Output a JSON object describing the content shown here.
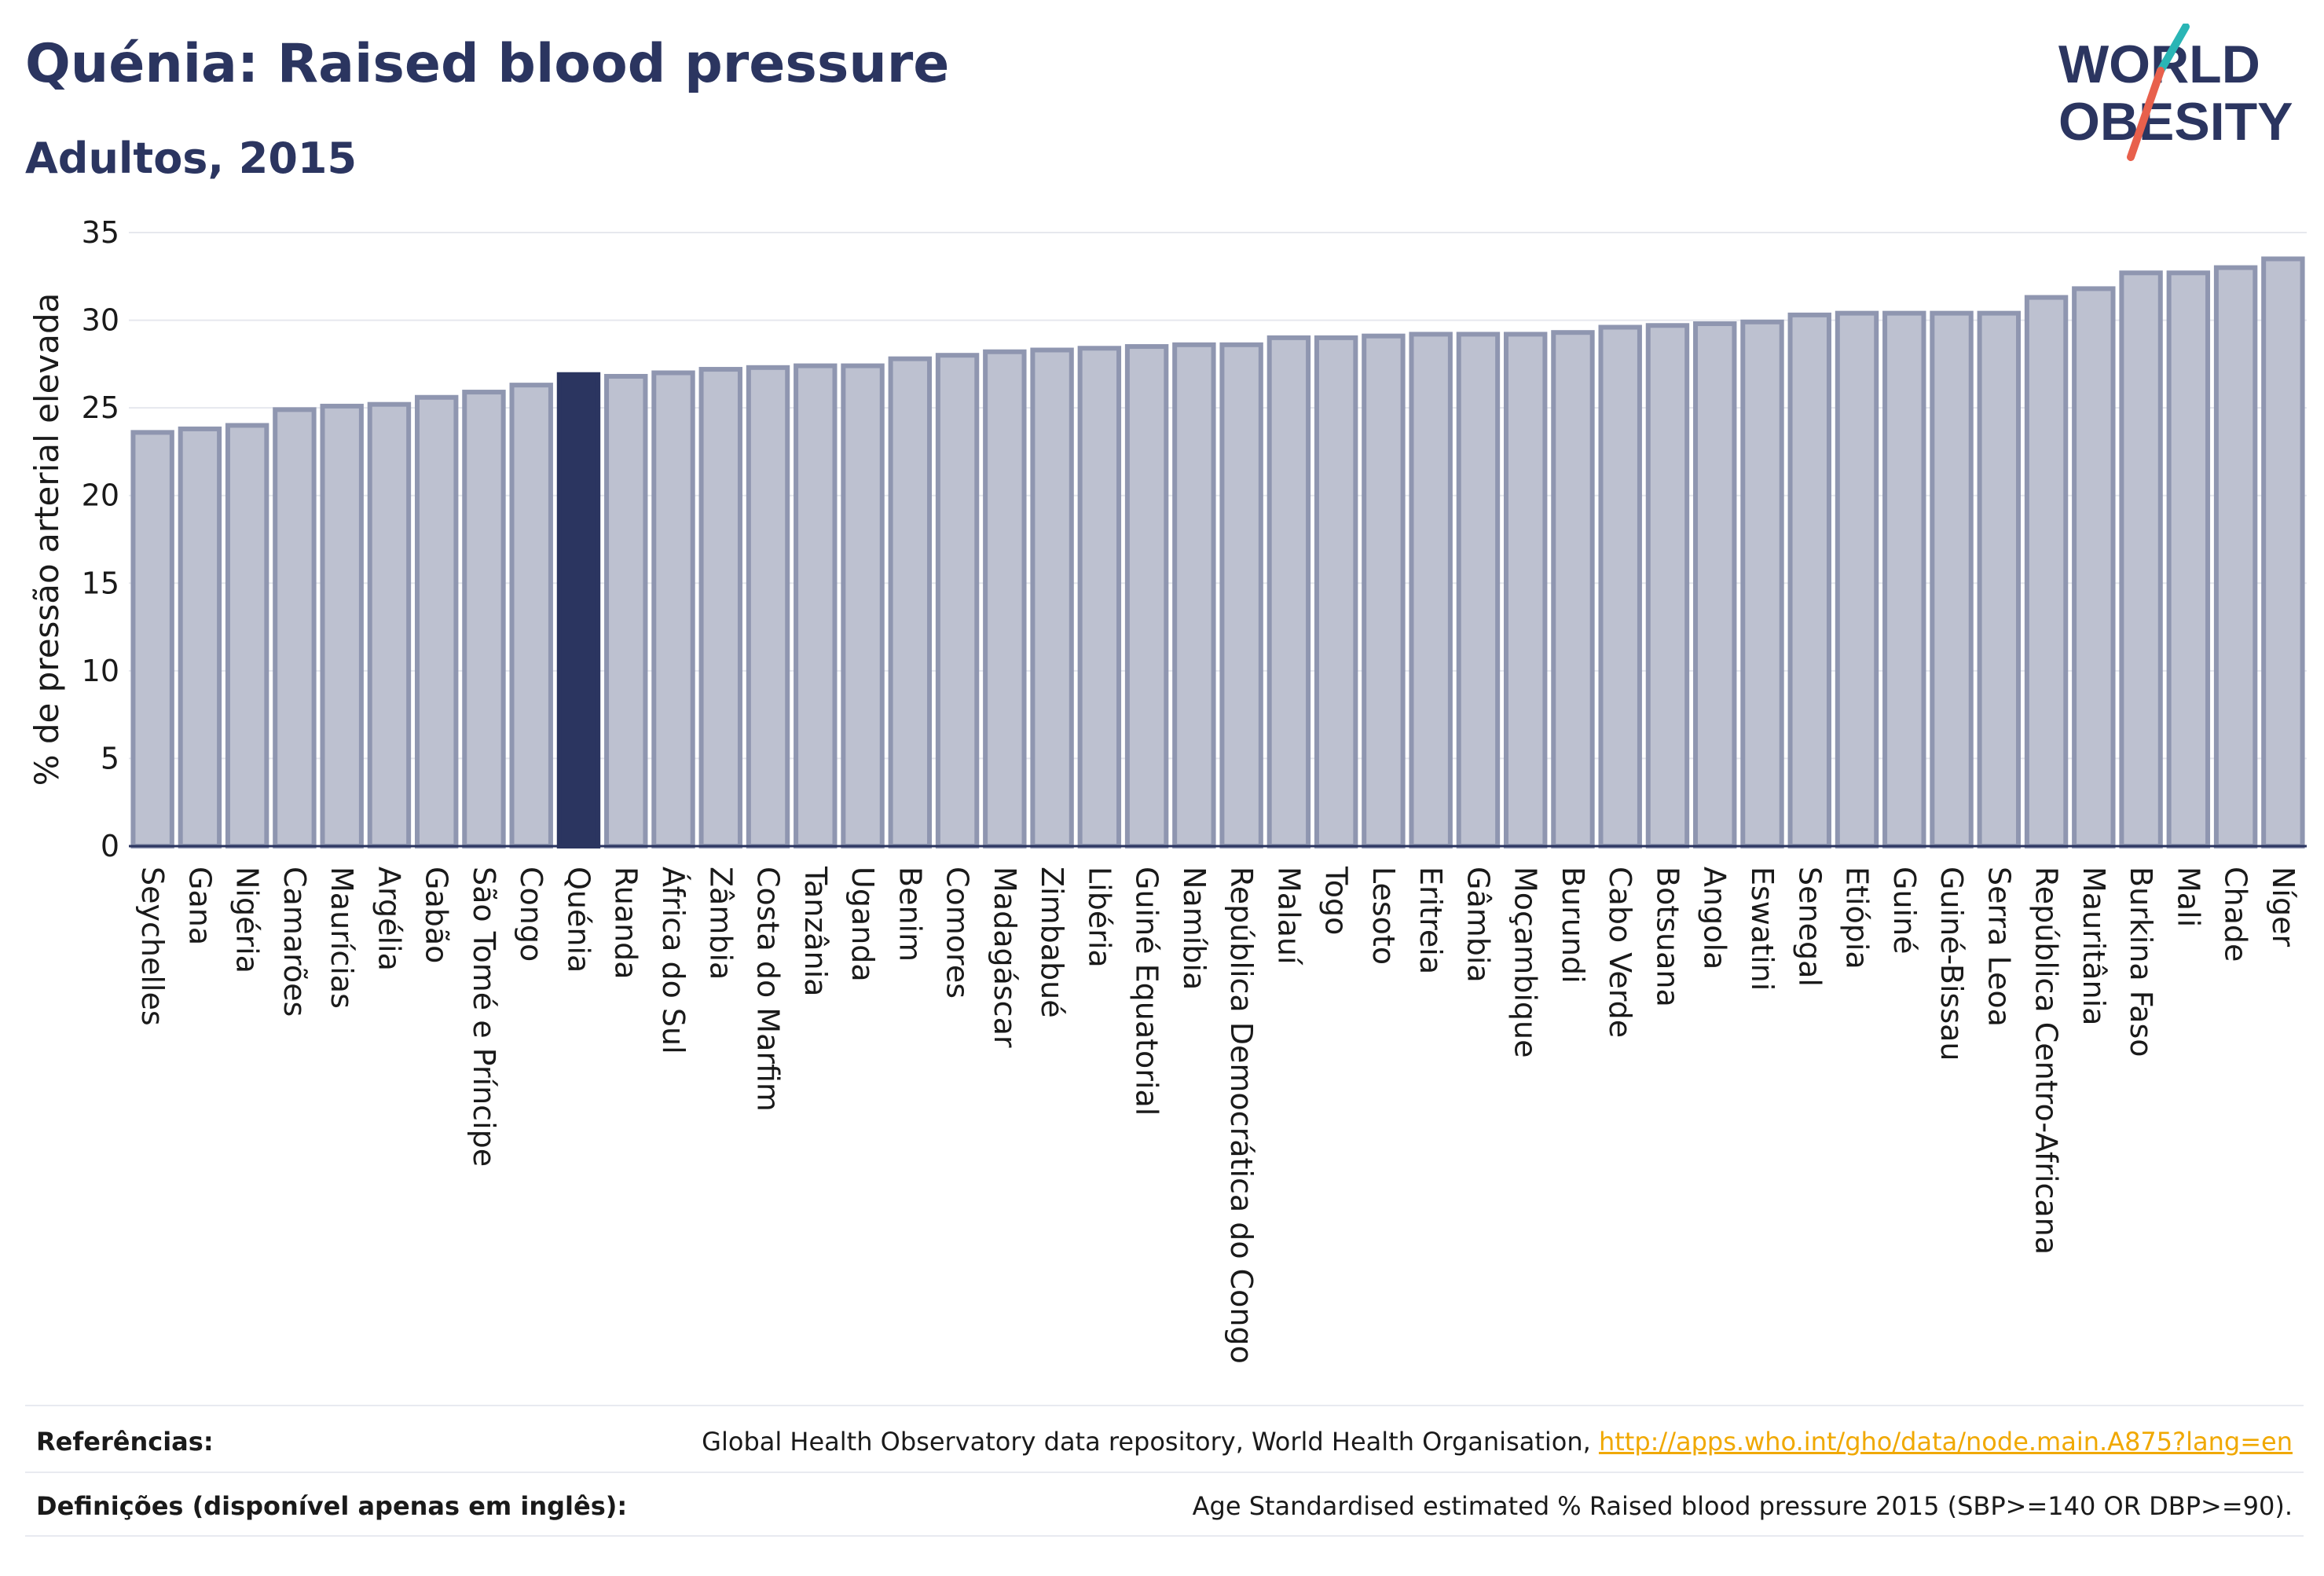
{
  "header": {
    "title": "Quénia: Raised blood pressure",
    "subtitle": "Adultos, 2015"
  },
  "logo": {
    "line1": "WORLD",
    "line2": "OBESITY",
    "text_color": "#2b3560",
    "slash_colors": [
      "#2ab5b5",
      "#e8604c"
    ]
  },
  "colors": {
    "bar_fill": "#bdc1d0",
    "bar_stroke": "#8f96b0",
    "highlight_fill": "#2b3560",
    "grid": "#e6e8ee",
    "text": "#1a1a1a",
    "title": "#2b3560"
  },
  "chart_data": {
    "type": "bar",
    "title": "Quénia: Raised blood pressure",
    "subtitle": "Adultos, 2015",
    "xlabel": "",
    "ylabel": "% de pressão arterial elevada",
    "ylim": [
      0,
      35
    ],
    "yticks": [
      0,
      5,
      10,
      15,
      20,
      25,
      30,
      35
    ],
    "grid": true,
    "highlight": "Quénia",
    "categories": [
      "Seychelles",
      "Gana",
      "Nigéria",
      "Camarões",
      "Maurícias",
      "Argélia",
      "Gabão",
      "São Tomé e Príncipe",
      "Congo",
      "Quénia",
      "Ruanda",
      "África do Sul",
      "Zâmbia",
      "Costa do Marfim",
      "Tanzânia",
      "Uganda",
      "Benim",
      "Comores",
      "Madagáscar",
      "Zimbabué",
      "Libéria",
      "Guiné Equatorial",
      "Namíbia",
      "República Democrática do Congo",
      "Malauí",
      "Togo",
      "Lesoto",
      "Eritreia",
      "Gâmbia",
      "Moçambique",
      "Burundi",
      "Cabo Verde",
      "Botsuana",
      "Angola",
      "Eswatini",
      "Senegal",
      "Etiópia",
      "Guiné",
      "Guiné-Bissau",
      "Serra Leoa",
      "República Centro-Africana",
      "Mauritânia",
      "Burkina Faso",
      "Mali",
      "Chade",
      "Níger"
    ],
    "values": [
      23.6,
      23.8,
      24.0,
      24.9,
      25.1,
      25.2,
      25.6,
      25.9,
      26.3,
      26.9,
      26.8,
      27.0,
      27.2,
      27.3,
      27.4,
      27.4,
      27.8,
      28.0,
      28.2,
      28.3,
      28.4,
      28.5,
      28.6,
      28.6,
      29.0,
      29.0,
      29.1,
      29.2,
      29.2,
      29.2,
      29.3,
      29.6,
      29.7,
      29.8,
      29.9,
      30.3,
      30.4,
      30.4,
      30.4,
      30.4,
      31.3,
      31.8,
      32.7,
      32.7,
      33.0,
      33.5
    ]
  },
  "footer": {
    "references_label": "Referências:",
    "references_text": "Global Health Observatory data repository, World Health Organisation, ",
    "references_link": "http://apps.who.int/gho/data/node.main.A875?lang=en",
    "definitions_label": "Definições (disponível apenas em inglês):",
    "definitions_text": "Age Standardised estimated % Raised blood pressure 2015 (SBP>=140 OR DBP>=90)."
  }
}
